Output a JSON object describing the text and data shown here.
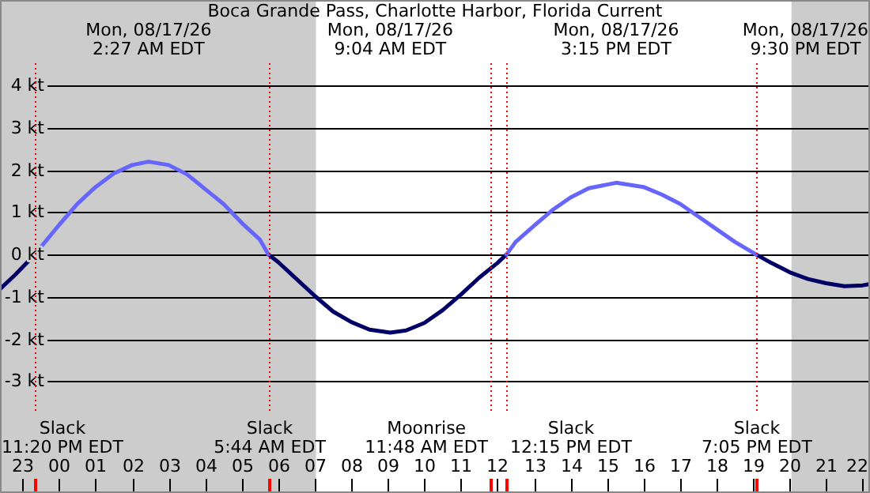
{
  "chart_data": {
    "type": "line",
    "title": "Boca Grande Pass, Charlotte Harbor, Florida Current",
    "x": [
      "--08-16T22:23",
      "--08-16T22:48",
      "--08-16T23:20",
      "--08-17T00:00",
      "--08-17T00:30",
      "--08-17T01:00",
      "--08-17T01:30",
      "--08-17T02:00",
      "--08-17T02:27",
      "--08-17T03:00",
      "--08-17T03:30",
      "--08-17T04:00",
      "--08-17T04:30",
      "--08-17T05:00",
      "--08-17T05:30",
      "--08-17T05:44",
      "--08-17T06:00",
      "--08-17T06:30",
      "--08-17T07:00",
      "--08-17T07:30",
      "--08-17T08:00",
      "--08-17T08:30",
      "--08-17T09:04",
      "--08-17T09:30",
      "--08-17T10:00",
      "--08-17T10:30",
      "--08-17T11:00",
      "--08-17T11:30",
      "--08-17T12:00",
      "--08-17T12:15",
      "--08-17T12:30",
      "--08-17T13:00",
      "--08-17T13:30",
      "--08-17T14:00",
      "--08-17T14:30",
      "--08-17T15:15",
      "--08-17T16:00",
      "--08-17T16:30",
      "--08-17T17:00",
      "--08-17T17:20",
      "--08-17T17:30",
      "--08-17T18:00",
      "--08-17T18:30",
      "--08-17T19:05",
      "--08-17T19:30",
      "--08-17T20:00",
      "--08-17T20:30",
      "--08-17T21:00",
      "--08-17T21:30",
      "--08-17T22:00",
      "--08-17T22:12"
    ],
    "series": [
      {
        "color": "#6666ff",
        "values": [
          null,
          null,
          0,
          0.7,
          1.2,
          1.6,
          1.92,
          2.12,
          2.2,
          2.12,
          1.9,
          1.55,
          1.2,
          0.75,
          0.35,
          0,
          null,
          null,
          null,
          null,
          null,
          null,
          null,
          null,
          null,
          null,
          null,
          null,
          null,
          0,
          0.3,
          0.68,
          1.05,
          1.35,
          1.57,
          1.7,
          1.6,
          1.42,
          1.2,
          1.0,
          0.9,
          0.6,
          0.3,
          0,
          null,
          null,
          null,
          null,
          null,
          null,
          null
        ]
      },
      {
        "color": "#000066",
        "values": [
          -0.82,
          -0.48,
          0,
          null,
          null,
          null,
          null,
          null,
          null,
          null,
          null,
          null,
          null,
          null,
          null,
          0,
          -0.18,
          -0.58,
          -0.98,
          -1.35,
          -1.6,
          -1.78,
          -1.85,
          -1.8,
          -1.62,
          -1.32,
          -0.95,
          -0.55,
          -0.2,
          0,
          null,
          null,
          null,
          null,
          null,
          null,
          null,
          null,
          null,
          null,
          null,
          null,
          null,
          0,
          -0.2,
          -0.42,
          -0.58,
          -0.68,
          -0.75,
          -0.73,
          -0.7
        ]
      }
    ],
    "xlim": [
      "--08-16T22:23",
      "--08-17T22:12"
    ],
    "xticks": [
      {
        "value": "--08-16T23:00",
        "label": "23"
      },
      {
        "value": "--08-17T00:00",
        "label": "00"
      },
      {
        "value": "--08-17T01:00",
        "label": "01"
      },
      {
        "value": "--08-17T02:00",
        "label": "02"
      },
      {
        "value": "--08-17T03:00",
        "label": "03"
      },
      {
        "value": "--08-17T04:00",
        "label": "04"
      },
      {
        "value": "--08-17T05:00",
        "label": "05"
      },
      {
        "value": "--08-17T06:00",
        "label": "06"
      },
      {
        "value": "--08-17T07:00",
        "label": "07"
      },
      {
        "value": "--08-17T08:00",
        "label": "08"
      },
      {
        "value": "--08-17T09:00",
        "label": "09"
      },
      {
        "value": "--08-17T10:00",
        "label": "10"
      },
      {
        "value": "--08-17T11:00",
        "label": "11"
      },
      {
        "value": "--08-17T12:00",
        "label": "12"
      },
      {
        "value": "--08-17T13:00",
        "label": "13"
      },
      {
        "value": "--08-17T14:00",
        "label": "14"
      },
      {
        "value": "--08-17T15:00",
        "label": "15"
      },
      {
        "value": "--08-17T16:00",
        "label": "16"
      },
      {
        "value": "--08-17T17:00",
        "label": "17"
      },
      {
        "value": "--08-17T18:00",
        "label": "18"
      },
      {
        "value": "--08-17T19:00",
        "label": "19"
      },
      {
        "value": "--08-17T20:00",
        "label": "20"
      },
      {
        "value": "--08-17T21:00",
        "label": "21"
      },
      {
        "value": "--08-17T22:00",
        "label": "22"
      }
    ],
    "ylim": [
      -5.65,
      6.03
    ],
    "yticks": [
      {
        "value": -3,
        "label": "-3 kt"
      },
      {
        "value": -2,
        "label": "-2 kt"
      },
      {
        "value": -1,
        "label": "-1 kt"
      },
      {
        "value": 0,
        "label": "0 kt"
      },
      {
        "value": 1,
        "label": "1 kt"
      },
      {
        "value": 2,
        "label": "2 kt"
      },
      {
        "value": 3,
        "label": "3 kt"
      },
      {
        "value": 4,
        "label": "4 kt"
      }
    ],
    "grid": "y",
    "bands": [
      {
        "axis": "x",
        "from": "--08-16T22:23",
        "to": "--08-17T07:02",
        "color": "#cccccc"
      },
      {
        "axis": "x",
        "from": "--08-17T20:03",
        "to": "--08-17T22:12",
        "color": "#cccccc"
      }
    ],
    "ref_lines": [
      {
        "axis": "x",
        "value": "--08-16T23:20",
        "label": "Slack\n11:20 PM EDT",
        "color": "#ff0000",
        "line_style": "dotted"
      },
      {
        "axis": "x",
        "value": "--08-17T05:44",
        "label": "Slack\n5:44 AM EDT",
        "color": "#ff0000",
        "line_style": "dotted"
      },
      {
        "axis": "x",
        "value": "--08-17T11:48",
        "label": "Moonrise\n11:48 AM EDT",
        "color": "#ff0000",
        "line_style": "dotted"
      },
      {
        "axis": "x",
        "value": "--08-17T12:15",
        "label": "Slack\n12:15 PM EDT",
        "color": "#ff0000",
        "line_style": "dotted"
      },
      {
        "axis": "x",
        "value": "--08-17T19:05",
        "label": "Slack\n7:05 PM EDT",
        "color": "#ff0000",
        "line_style": "dotted"
      }
    ],
    "annotations": [
      "Mon, 08/17/26\n2:27 AM EDT",
      "Mon, 08/17/26\n9:04 AM EDT",
      "Mon, 08/17/26\n3:15 PM EDT",
      "Mon, 08/17/26\n9:30 PM EDT"
    ]
  }
}
